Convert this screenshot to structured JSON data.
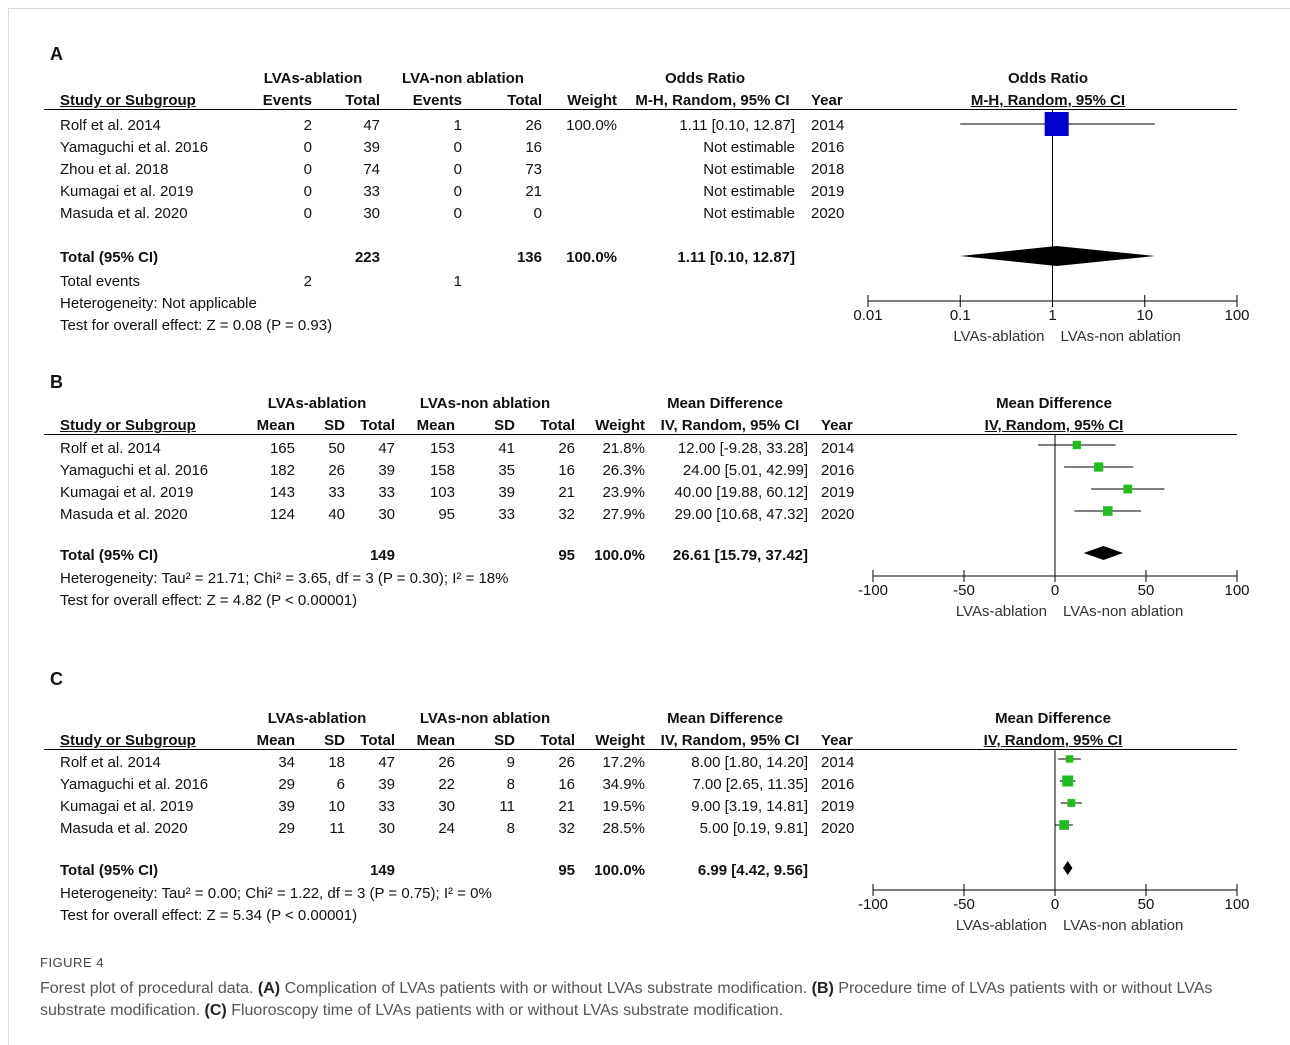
{
  "figure_label": "FIGURE 4",
  "caption": {
    "lead": "Forest plot of procedural data. ",
    "a_tag": "(A)",
    "a_text": " Complication of LVAs patients with or without LVAs substrate modification. ",
    "b_tag": "(B)",
    "b_text": " Procedure time of LVAs patients with or without LVAs substrate modification. ",
    "c_tag": "(C)",
    "c_text": " Fluoroscopy time of LVAs patients with or without LVAs substrate modification."
  },
  "colors": {
    "square_a": "#0000cc",
    "square_bc": "#22bb22",
    "diamond": "#000000"
  },
  "chart_data": [
    {
      "type": "forest",
      "panel": "A",
      "measure": "odds_ratio",
      "headers": {
        "group1": "LVAs-ablation",
        "group2": "LVA-non ablation",
        "effect_title": "Odds Ratio",
        "effect_method": "M-H, Random, 95% CI",
        "study": "Study or Subgroup",
        "events": "Events",
        "total": "Total",
        "weight": "Weight",
        "year": "Year"
      },
      "studies": [
        {
          "name": "Rolf et al. 2014",
          "events1": "2",
          "total1": "47",
          "events2": "1",
          "total2": "26",
          "weight": "100.0%",
          "ci_text": "1.11 [0.10, 12.87]",
          "year": "2014",
          "est": 1.11,
          "lo": 0.1,
          "hi": 12.87
        },
        {
          "name": "Yamaguchi et al. 2016",
          "events1": "0",
          "total1": "39",
          "events2": "0",
          "total2": "16",
          "weight": "",
          "ci_text": "Not estimable",
          "year": "2016",
          "est": null,
          "lo": null,
          "hi": null
        },
        {
          "name": "Zhou et al. 2018",
          "events1": "0",
          "total1": "74",
          "events2": "0",
          "total2": "73",
          "weight": "",
          "ci_text": "Not estimable",
          "year": "2018",
          "est": null,
          "lo": null,
          "hi": null
        },
        {
          "name": "Kumagai et al. 2019",
          "events1": "0",
          "total1": "33",
          "events2": "0",
          "total2": "21",
          "weight": "",
          "ci_text": "Not estimable",
          "year": "2019",
          "est": null,
          "lo": null,
          "hi": null
        },
        {
          "name": "Masuda et al. 2020",
          "events1": "0",
          "total1": "30",
          "events2": "0",
          "total2": "0",
          "weight": "",
          "ci_text": "Not estimable",
          "year": "2020",
          "est": null,
          "lo": null,
          "hi": null
        }
      ],
      "total": {
        "label": "Total (95% CI)",
        "total1": "223",
        "total2": "136",
        "weight": "100.0%",
        "ci_text": "1.11 [0.10, 12.87]",
        "est": 1.11,
        "lo": 0.1,
        "hi": 12.87
      },
      "total_events": {
        "label": "Total events",
        "events1": "2",
        "events2": "1"
      },
      "heterogeneity": "Heterogeneity: Not applicable",
      "overall_effect": "Test for overall effect: Z = 0.08 (P = 0.93)",
      "axis": {
        "scale": "log",
        "range": [
          0.01,
          100
        ],
        "null_value": 1,
        "ticks": [
          0.01,
          0.1,
          1,
          10,
          100
        ],
        "tick_labels": [
          "0.01",
          "0.1",
          "1",
          "10",
          "100"
        ],
        "favours_left": "LVAs-ablation",
        "favours_right": "LVAs-non ablation"
      }
    },
    {
      "type": "forest",
      "panel": "B",
      "measure": "mean_difference",
      "headers": {
        "group1": "LVAs-ablation",
        "group2": "LVAs-non ablation",
        "effect_title": "Mean Difference",
        "effect_method": "IV, Random, 95% CI",
        "study": "Study or Subgroup",
        "mean": "Mean",
        "sd": "SD",
        "total": "Total",
        "weight": "Weight",
        "year": "Year"
      },
      "studies": [
        {
          "name": "Rolf et al. 2014",
          "mean1": "165",
          "sd1": "50",
          "total1": "47",
          "mean2": "153",
          "sd2": "41",
          "total2": "26",
          "weight": "21.8%",
          "ci_text": "12.00 [-9.28, 33.28]",
          "year": "2014",
          "est": 12.0,
          "lo": -9.28,
          "hi": 33.28
        },
        {
          "name": "Yamaguchi et al. 2016",
          "mean1": "182",
          "sd1": "26",
          "total1": "39",
          "mean2": "158",
          "sd2": "35",
          "total2": "16",
          "weight": "26.3%",
          "ci_text": "24.00 [5.01, 42.99]",
          "year": "2016",
          "est": 24.0,
          "lo": 5.01,
          "hi": 42.99
        },
        {
          "name": "Kumagai et al. 2019",
          "mean1": "143",
          "sd1": "33",
          "total1": "33",
          "mean2": "103",
          "sd2": "39",
          "total2": "21",
          "weight": "23.9%",
          "ci_text": "40.00 [19.88, 60.12]",
          "year": "2019",
          "est": 40.0,
          "lo": 19.88,
          "hi": 60.12
        },
        {
          "name": "Masuda et al. 2020",
          "mean1": "124",
          "sd1": "40",
          "total1": "30",
          "mean2": "95",
          "sd2": "33",
          "total2": "32",
          "weight": "27.9%",
          "ci_text": "29.00 [10.68, 47.32]",
          "year": "2020",
          "est": 29.0,
          "lo": 10.68,
          "hi": 47.32
        }
      ],
      "total": {
        "label": "Total (95% CI)",
        "total1": "149",
        "total2": "95",
        "weight": "100.0%",
        "ci_text": "26.61 [15.79, 37.42]",
        "est": 26.61,
        "lo": 15.79,
        "hi": 37.42
      },
      "heterogeneity": "Heterogeneity: Tau² = 21.71; Chi² = 3.65, df = 3 (P = 0.30); I² = 18%",
      "overall_effect": "Test for overall effect: Z = 4.82 (P < 0.00001)",
      "axis": {
        "scale": "linear",
        "range": [
          -100,
          100
        ],
        "null_value": 0,
        "ticks": [
          -100,
          -50,
          0,
          50,
          100
        ],
        "tick_labels": [
          "-100",
          "-50",
          "0",
          "50",
          "100"
        ],
        "favours_left": "LVAs-ablation",
        "favours_right": "LVAs-non ablation"
      }
    },
    {
      "type": "forest",
      "panel": "C",
      "measure": "mean_difference",
      "headers": {
        "group1": "LVAs-ablation",
        "group2": "LVAs-non ablation",
        "effect_title": "Mean Difference",
        "effect_method": "IV, Random, 95% CI",
        "study": "Study or Subgroup",
        "mean": "Mean",
        "sd": "SD",
        "total": "Total",
        "weight": "Weight",
        "year": "Year"
      },
      "studies": [
        {
          "name": "Rolf et al. 2014",
          "mean1": "34",
          "sd1": "18",
          "total1": "47",
          "mean2": "26",
          "sd2": "9",
          "total2": "26",
          "weight": "17.2%",
          "ci_text": "8.00 [1.80, 14.20]",
          "year": "2014",
          "est": 8.0,
          "lo": 1.8,
          "hi": 14.2
        },
        {
          "name": "Yamaguchi et al. 2016",
          "mean1": "29",
          "sd1": "6",
          "total1": "39",
          "mean2": "22",
          "sd2": "8",
          "total2": "16",
          "weight": "34.9%",
          "ci_text": "7.00 [2.65, 11.35]",
          "year": "2016",
          "est": 7.0,
          "lo": 2.65,
          "hi": 11.35
        },
        {
          "name": "Kumagai et al. 2019",
          "mean1": "39",
          "sd1": "10",
          "total1": "33",
          "mean2": "30",
          "sd2": "11",
          "total2": "21",
          "weight": "19.5%",
          "ci_text": "9.00 [3.19, 14.81]",
          "year": "2019",
          "est": 9.0,
          "lo": 3.19,
          "hi": 14.81
        },
        {
          "name": "Masuda et al. 2020",
          "mean1": "29",
          "sd1": "11",
          "total1": "30",
          "mean2": "24",
          "sd2": "8",
          "total2": "32",
          "weight": "28.5%",
          "ci_text": "5.00 [0.19, 9.81]",
          "year": "2020",
          "est": 5.0,
          "lo": 0.19,
          "hi": 9.81
        }
      ],
      "total": {
        "label": "Total (95% CI)",
        "total1": "149",
        "total2": "95",
        "weight": "100.0%",
        "ci_text": "6.99 [4.42, 9.56]",
        "est": 6.99,
        "lo": 4.42,
        "hi": 9.56
      },
      "heterogeneity": "Heterogeneity: Tau² = 0.00; Chi² = 1.22, df = 3 (P = 0.75); I² = 0%",
      "overall_effect": "Test for overall effect: Z = 5.34 (P < 0.00001)",
      "axis": {
        "scale": "linear",
        "range": [
          -100,
          100
        ],
        "null_value": 0,
        "ticks": [
          -100,
          -50,
          0,
          50,
          100
        ],
        "tick_labels": [
          "-100",
          "-50",
          "0",
          "50",
          "100"
        ],
        "favours_left": "LVAs-ablation",
        "favours_right": "LVAs-non ablation"
      }
    }
  ]
}
